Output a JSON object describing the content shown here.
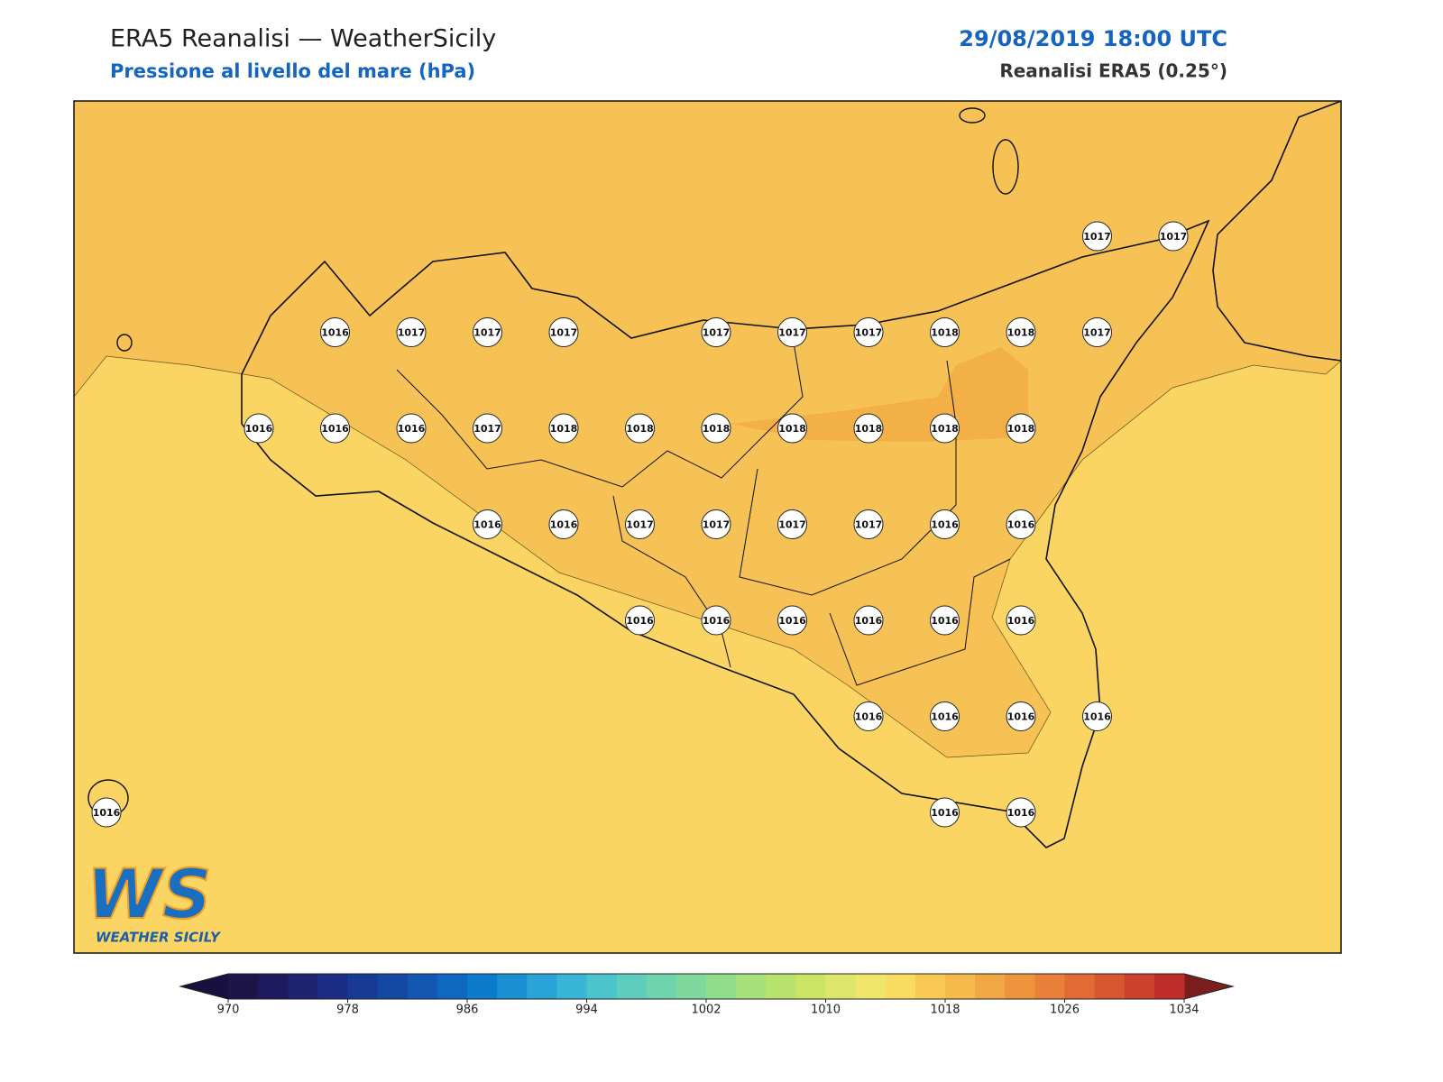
{
  "header": {
    "title": "ERA5 Reanalisi — WeatherSicily",
    "subtitle": "Pressione al livello del mare (hPa)",
    "datetime": "29/08/2019 18:00 UTC",
    "source": "Reanalisi ERA5 (0.25°)"
  },
  "stations": [
    1017,
    1017,
    1016,
    1017,
    1017,
    1017,
    1017,
    1017,
    1017,
    1018,
    1018,
    1017,
    1016,
    1016,
    1016,
    1017,
    1018,
    1018,
    1018,
    1018,
    1018,
    1018,
    1018,
    1016,
    1016,
    1017,
    1017,
    1017,
    1017,
    1016,
    1016,
    1016,
    1016,
    1016,
    1016,
    1016,
    1016,
    1016,
    1016,
    1016,
    1016,
    1016,
    1016,
    1016
  ],
  "colorbar": {
    "range": [
      970,
      1034
    ],
    "ticks": [
      970,
      978,
      986,
      994,
      1002,
      1010,
      1018,
      1026,
      1034
    ],
    "colors": [
      "#1d1547",
      "#1f1a5e",
      "#1e2372",
      "#1b2d85",
      "#183a94",
      "#1548a3",
      "#1257b2",
      "#0f68bf",
      "#0d7bcc",
      "#1a8fd2",
      "#2aa3d6",
      "#39b6d5",
      "#4cc4cc",
      "#5ecdbd",
      "#6fd3ad",
      "#80d99c",
      "#92dd8b",
      "#a5e07b",
      "#b8e26e",
      "#cbe464",
      "#dde66a",
      "#f1e66c",
      "#fadb62",
      "#f8ca55",
      "#f5b94c",
      "#f1a744",
      "#ed943d",
      "#e8803a",
      "#e26b35",
      "#d85630",
      "#cc412d",
      "#bf2d2a"
    ],
    "extend_colors": [
      "#1a1040",
      "#7a1e1e"
    ]
  },
  "logo": {
    "mark": "WS",
    "name": "WEATHER SICILY"
  }
}
